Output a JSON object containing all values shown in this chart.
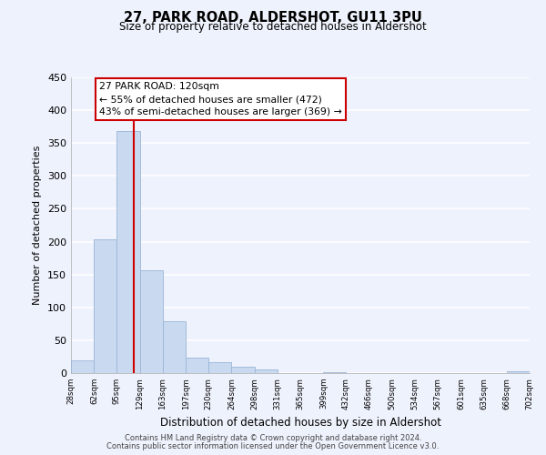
{
  "title": "27, PARK ROAD, ALDERSHOT, GU11 3PU",
  "subtitle": "Size of property relative to detached houses in Aldershot",
  "xlabel": "Distribution of detached houses by size in Aldershot",
  "ylabel": "Number of detached properties",
  "bar_color": "#c9d9f0",
  "bar_edge_color": "#9ab5d8",
  "vline_color": "#cc0000",
  "vline_x": 120,
  "annotation_title": "27 PARK ROAD: 120sqm",
  "annotation_line1": "← 55% of detached houses are smaller (472)",
  "annotation_line2": "43% of semi-detached houses are larger (369) →",
  "annotation_box_color": "#ffffff",
  "annotation_box_edge": "#cc0000",
  "bin_edges": [
    28,
    62,
    95,
    129,
    163,
    197,
    230,
    264,
    298,
    331,
    365,
    399,
    432,
    466,
    500,
    534,
    567,
    601,
    635,
    668,
    702
  ],
  "bar_heights": [
    20,
    203,
    368,
    156,
    79,
    23,
    16,
    10,
    5,
    0,
    0,
    2,
    0,
    0,
    0,
    0,
    0,
    0,
    0,
    3
  ],
  "ylim": [
    0,
    450
  ],
  "yticks": [
    0,
    50,
    100,
    150,
    200,
    250,
    300,
    350,
    400,
    450
  ],
  "footnote1": "Contains HM Land Registry data © Crown copyright and database right 2024.",
  "footnote2": "Contains public sector information licensed under the Open Government Licence v3.0.",
  "bg_color": "#eef2fc",
  "plot_bg_color": "#eef2fc",
  "grid_color": "#ffffff"
}
